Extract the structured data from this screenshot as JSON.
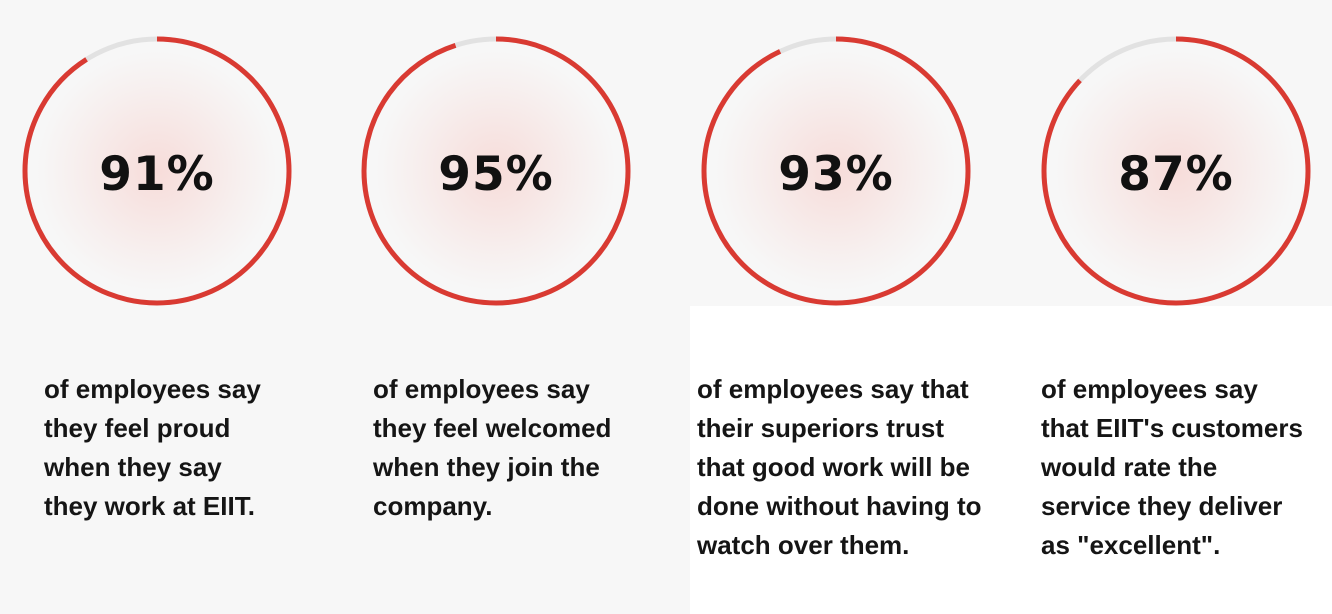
{
  "chart_data": {
    "type": "gauge",
    "colors": {
      "progress": "#d93a32",
      "track": "#e2e2e2",
      "glow": "#f7d9d6"
    },
    "items": [
      {
        "value": 91,
        "label": "91%",
        "caption_lines": [
          "of employees say",
          "they feel proud",
          "when they say",
          "they work at EIIT."
        ]
      },
      {
        "value": 95,
        "label": "95%",
        "caption_lines": [
          "of employees say",
          "they feel welcomed",
          "when they join the",
          "company."
        ]
      },
      {
        "value": 93,
        "label": "93%",
        "caption_lines": [
          "of employees say that",
          "their superiors trust",
          "that good work will be",
          "done without having to",
          "watch over them."
        ]
      },
      {
        "value": 87,
        "label": "87%",
        "caption_lines": [
          "of employees say",
          "that EIIT's customers",
          "would rate the",
          "service they deliver",
          "as \"excellent\"."
        ]
      }
    ]
  }
}
